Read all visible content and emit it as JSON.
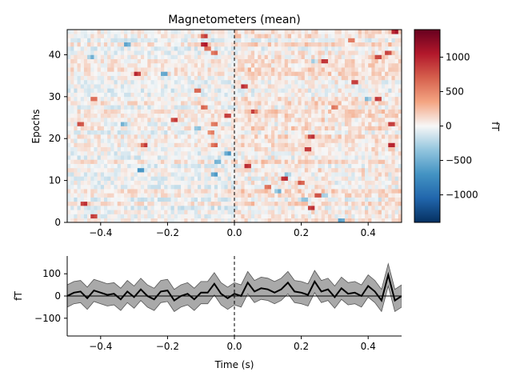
{
  "chart_data": [
    {
      "type": "heatmap",
      "title": "Magnetometers (mean)",
      "ylabel": "Epochs",
      "xlim": [
        -0.5,
        0.5
      ],
      "ylim": [
        0,
        46
      ],
      "xticks": [
        -0.4,
        -0.2,
        0.0,
        0.2,
        0.4
      ],
      "xtick_labels": [
        "−0.4",
        "−0.2",
        "0.0",
        "0.2",
        "0.4"
      ],
      "yticks": [
        0,
        10,
        20,
        30,
        40
      ],
      "ytick_labels": [
        "0",
        "10",
        "20",
        "30",
        "40"
      ],
      "n_epochs": 46,
      "time_bins": 100,
      "vline_x": 0.0,
      "colormap": "RdBu_r",
      "grid": false,
      "peaks": [
        {
          "epoch": 1.5,
          "t": -0.42,
          "v": 1400
        },
        {
          "epoch": 4.5,
          "t": -0.45,
          "v": 1200
        },
        {
          "epoch": 3.5,
          "t": 0.23,
          "v": 1300
        },
        {
          "epoch": 0.5,
          "t": 0.32,
          "v": -900
        },
        {
          "epoch": 5.5,
          "t": 0.21,
          "v": -700
        },
        {
          "epoch": 6.5,
          "t": 0.25,
          "v": 900
        },
        {
          "epoch": 6.5,
          "t": 0.27,
          "v": -600
        },
        {
          "epoch": 7.5,
          "t": 0.13,
          "v": -800
        },
        {
          "epoch": 8.5,
          "t": 0.1,
          "v": 900
        },
        {
          "epoch": 9.5,
          "t": 0.2,
          "v": 800
        },
        {
          "epoch": 10.5,
          "t": 0.15,
          "v": 1200
        },
        {
          "epoch": 11.5,
          "t": -0.06,
          "v": -800
        },
        {
          "epoch": 11.5,
          "t": 0.16,
          "v": -600
        },
        {
          "epoch": 12.5,
          "t": -0.28,
          "v": -900
        },
        {
          "epoch": 13.5,
          "t": 0.04,
          "v": 1300
        },
        {
          "epoch": 14.5,
          "t": -0.05,
          "v": -700
        },
        {
          "epoch": 16.5,
          "t": -0.02,
          "v": -900
        },
        {
          "epoch": 17.5,
          "t": 0.22,
          "v": 1200
        },
        {
          "epoch": 18.5,
          "t": -0.27,
          "v": 1100
        },
        {
          "epoch": 18.5,
          "t": -0.06,
          "v": 800
        },
        {
          "epoch": 18.5,
          "t": 0.47,
          "v": 1300
        },
        {
          "epoch": 20.5,
          "t": 0.23,
          "v": 1100
        },
        {
          "epoch": 21.5,
          "t": -0.07,
          "v": 800
        },
        {
          "epoch": 22.5,
          "t": -0.11,
          "v": -700
        },
        {
          "epoch": 23.5,
          "t": -0.33,
          "v": -600
        },
        {
          "epoch": 23.5,
          "t": -0.06,
          "v": 900
        },
        {
          "epoch": 23.5,
          "t": -0.46,
          "v": 1200
        },
        {
          "epoch": 23.5,
          "t": 0.47,
          "v": 1200
        },
        {
          "epoch": 24.5,
          "t": -0.18,
          "v": 1100
        },
        {
          "epoch": 25.5,
          "t": -0.02,
          "v": 1300
        },
        {
          "epoch": 26.5,
          "t": 0.06,
          "v": 900
        },
        {
          "epoch": 27.5,
          "t": -0.09,
          "v": 1000
        },
        {
          "epoch": 27.5,
          "t": 0.3,
          "v": 900
        },
        {
          "epoch": 29.5,
          "t": -0.42,
          "v": 900
        },
        {
          "epoch": 29.5,
          "t": 0.4,
          "v": -700
        },
        {
          "epoch": 29.5,
          "t": 0.43,
          "v": 1000
        },
        {
          "epoch": 31.5,
          "t": -0.11,
          "v": 1000
        },
        {
          "epoch": 32.5,
          "t": 0.03,
          "v": 1300
        },
        {
          "epoch": 33.5,
          "t": 0.36,
          "v": 1100
        },
        {
          "epoch": 35.5,
          "t": -0.29,
          "v": 1200
        },
        {
          "epoch": 35.5,
          "t": -0.21,
          "v": -800
        },
        {
          "epoch": 38.5,
          "t": 0.27,
          "v": 1100
        },
        {
          "epoch": 38.5,
          "t": 0.24,
          "v": -600
        },
        {
          "epoch": 39.5,
          "t": -0.43,
          "v": -600
        },
        {
          "epoch": 39.5,
          "t": 0.43,
          "v": 1000
        },
        {
          "epoch": 40.5,
          "t": -0.06,
          "v": 1000
        },
        {
          "epoch": 40.5,
          "t": 0.46,
          "v": 1200
        },
        {
          "epoch": 41.5,
          "t": -0.08,
          "v": 1100
        },
        {
          "epoch": 42.5,
          "t": -0.32,
          "v": -900
        },
        {
          "epoch": 42.5,
          "t": -0.09,
          "v": 1300
        },
        {
          "epoch": 43.5,
          "t": 0.35,
          "v": 900
        },
        {
          "epoch": 44.5,
          "t": -0.09,
          "v": 1200
        },
        {
          "epoch": 45.5,
          "t": 0.48,
          "v": 1300
        }
      ]
    },
    {
      "type": "colorbar",
      "label": "fT",
      "vmin": -1400,
      "vmax": 1400,
      "ticks": [
        -1000,
        -500,
        0,
        500,
        1000
      ],
      "tick_labels": [
        "−1000",
        "−500",
        "0",
        "500",
        "1000"
      ],
      "colormap": "RdBu_r"
    },
    {
      "type": "line",
      "xlabel": "Time (s)",
      "ylabel": "fT",
      "xlim": [
        -0.5,
        0.5
      ],
      "ylim": [
        -180,
        180
      ],
      "xticks": [
        -0.4,
        -0.2,
        0.0,
        0.2,
        0.4
      ],
      "xtick_labels": [
        "−0.4",
        "−0.2",
        "0.0",
        "0.2",
        "0.4"
      ],
      "yticks": [
        -100,
        0,
        100
      ],
      "ytick_labels": [
        "−100",
        "0",
        "100"
      ],
      "hline_y": 0,
      "vline_x": 0.0,
      "x": [
        -0.5,
        -0.48,
        -0.46,
        -0.44,
        -0.42,
        -0.4,
        -0.38,
        -0.36,
        -0.34,
        -0.32,
        -0.3,
        -0.28,
        -0.26,
        -0.24,
        -0.22,
        -0.2,
        -0.18,
        -0.16,
        -0.14,
        -0.12,
        -0.1,
        -0.08,
        -0.06,
        -0.04,
        -0.02,
        0.0,
        0.02,
        0.04,
        0.06,
        0.08,
        0.1,
        0.12,
        0.14,
        0.16,
        0.18,
        0.2,
        0.22,
        0.24,
        0.26,
        0.28,
        0.3,
        0.32,
        0.34,
        0.36,
        0.38,
        0.4,
        0.42,
        0.44,
        0.46,
        0.48,
        0.5
      ],
      "mean": [
        0,
        15,
        20,
        -10,
        25,
        15,
        5,
        10,
        -15,
        20,
        -5,
        30,
        0,
        -15,
        20,
        25,
        -20,
        0,
        10,
        -15,
        15,
        15,
        55,
        10,
        -10,
        10,
        0,
        60,
        20,
        35,
        30,
        15,
        30,
        60,
        20,
        15,
        5,
        65,
        20,
        30,
        -5,
        35,
        10,
        15,
        0,
        45,
        20,
        -20,
        95,
        -20,
        0
      ],
      "lower": [
        -50,
        -35,
        -30,
        -60,
        -25,
        -35,
        -45,
        -40,
        -65,
        -30,
        -55,
        -20,
        -50,
        -65,
        -30,
        -25,
        -70,
        -50,
        -40,
        -65,
        -35,
        -35,
        5,
        -40,
        -60,
        -40,
        -50,
        10,
        -30,
        -15,
        -20,
        -35,
        -20,
        10,
        -30,
        -35,
        -45,
        15,
        -30,
        -20,
        -55,
        -15,
        -40,
        -35,
        -50,
        -5,
        -30,
        -70,
        45,
        -70,
        -50
      ],
      "upper": [
        50,
        65,
        70,
        40,
        75,
        65,
        55,
        60,
        35,
        70,
        45,
        80,
        50,
        35,
        70,
        75,
        30,
        50,
        60,
        35,
        65,
        65,
        105,
        60,
        40,
        60,
        50,
        110,
        70,
        85,
        80,
        65,
        80,
        110,
        70,
        65,
        55,
        115,
        70,
        80,
        45,
        85,
        60,
        65,
        50,
        95,
        70,
        30,
        145,
        30,
        50
      ]
    }
  ]
}
